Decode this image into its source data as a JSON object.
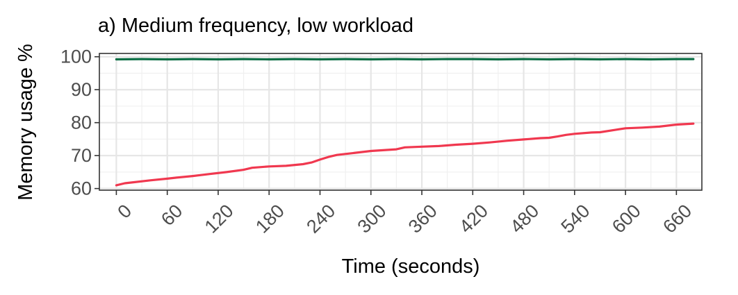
{
  "chart_data": {
    "type": "line",
    "title": "a) Medium frequency, low workload",
    "xlabel": "Time (seconds)",
    "ylabel": "Memory usage %",
    "xlim": [
      -20,
      690
    ],
    "ylim": [
      59.5,
      101
    ],
    "x_ticks": [
      0,
      60,
      120,
      180,
      240,
      300,
      360,
      420,
      480,
      540,
      600,
      660
    ],
    "y_ticks": [
      60,
      70,
      80,
      90,
      100
    ],
    "grid": true,
    "legend": "none",
    "series": [
      {
        "color": "#0b6e45",
        "x": [
          0,
          30,
          60,
          90,
          120,
          150,
          180,
          210,
          240,
          270,
          300,
          330,
          360,
          390,
          420,
          450,
          480,
          510,
          540,
          570,
          600,
          630,
          660,
          680
        ],
        "y": [
          99.2,
          99.3,
          99.2,
          99.3,
          99.2,
          99.3,
          99.2,
          99.3,
          99.2,
          99.3,
          99.2,
          99.3,
          99.2,
          99.3,
          99.3,
          99.2,
          99.3,
          99.2,
          99.3,
          99.2,
          99.3,
          99.2,
          99.3,
          99.3
        ]
      },
      {
        "color": "#f0384f",
        "x": [
          0,
          10,
          20,
          40,
          60,
          70,
          90,
          110,
          130,
          150,
          160,
          180,
          200,
          220,
          230,
          240,
          250,
          260,
          280,
          300,
          330,
          340,
          360,
          380,
          400,
          420,
          440,
          460,
          480,
          500,
          510,
          520,
          530,
          540,
          560,
          570,
          590,
          600,
          620,
          640,
          660,
          680
        ],
        "y": [
          61.0,
          61.6,
          61.9,
          62.5,
          63.0,
          63.3,
          63.8,
          64.4,
          65.0,
          65.7,
          66.3,
          66.7,
          66.9,
          67.4,
          67.9,
          68.8,
          69.6,
          70.2,
          70.8,
          71.4,
          71.9,
          72.5,
          72.7,
          72.9,
          73.3,
          73.6,
          74.0,
          74.5,
          74.9,
          75.3,
          75.4,
          75.8,
          76.3,
          76.6,
          77.0,
          77.1,
          77.9,
          78.3,
          78.5,
          78.8,
          79.4,
          79.7
        ]
      }
    ]
  }
}
